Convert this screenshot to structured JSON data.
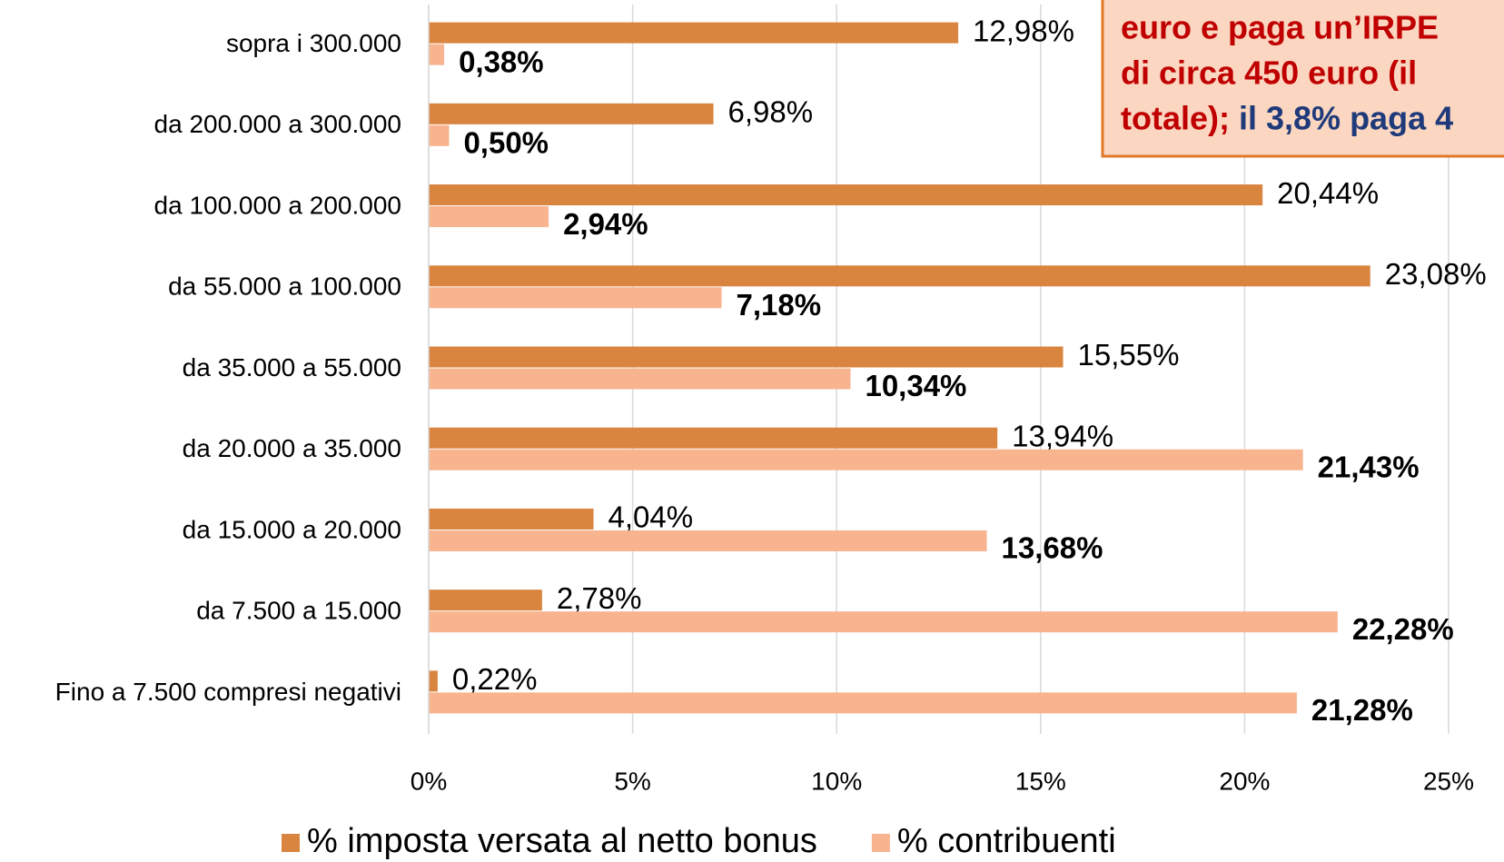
{
  "chart_data": {
    "type": "hbar",
    "categories": [
      "sopra i 300.000",
      "da 200.000 a 300.000",
      "da 100.000 a 200.000",
      "da 55.000 a 100.000",
      "da 35.000 a 55.000",
      "da 20.000 a 35.000",
      "da 15.000 a 20.000",
      "da 7.500 a 15.000",
      "Fino a 7.500 compresi negativi"
    ],
    "series": [
      {
        "name": "% imposta versata al netto bonus",
        "color": "#d9843f",
        "values": [
          12.98,
          6.98,
          20.44,
          23.08,
          15.55,
          13.94,
          4.04,
          2.78,
          0.22
        ],
        "value_labels": [
          "12,98%",
          "6,98%",
          "20,44%",
          "23,08%",
          "15,55%",
          "13,94%",
          "4,04%",
          "2,78%",
          "0,22%"
        ]
      },
      {
        "name": "% contribuenti",
        "color": "#f8b38f",
        "values": [
          0.38,
          0.5,
          2.94,
          7.18,
          10.34,
          21.43,
          13.68,
          22.28,
          21.28
        ],
        "value_labels": [
          "0,38%",
          "0,50%",
          "2,94%",
          "7,18%",
          "10,34%",
          "21,43%",
          "13,68%",
          "22,28%",
          "21,28%"
        ]
      }
    ],
    "xlim": [
      0,
      25
    ],
    "xticks": [
      {
        "value": 0,
        "label": "0%"
      },
      {
        "value": 5,
        "label": "5%"
      },
      {
        "value": 10,
        "label": "10%"
      },
      {
        "value": 15,
        "label": "15%"
      },
      {
        "value": 20,
        "label": "20%"
      },
      {
        "value": 25,
        "label": "25%"
      }
    ],
    "grid": true,
    "legend": "bottom",
    "annotation": {
      "lines": [
        "euro e paga un’IRPE",
        "di circa 450 euro (il",
        "totale);"
      ],
      "highlight": "il 3,8% paga 4"
    }
  }
}
